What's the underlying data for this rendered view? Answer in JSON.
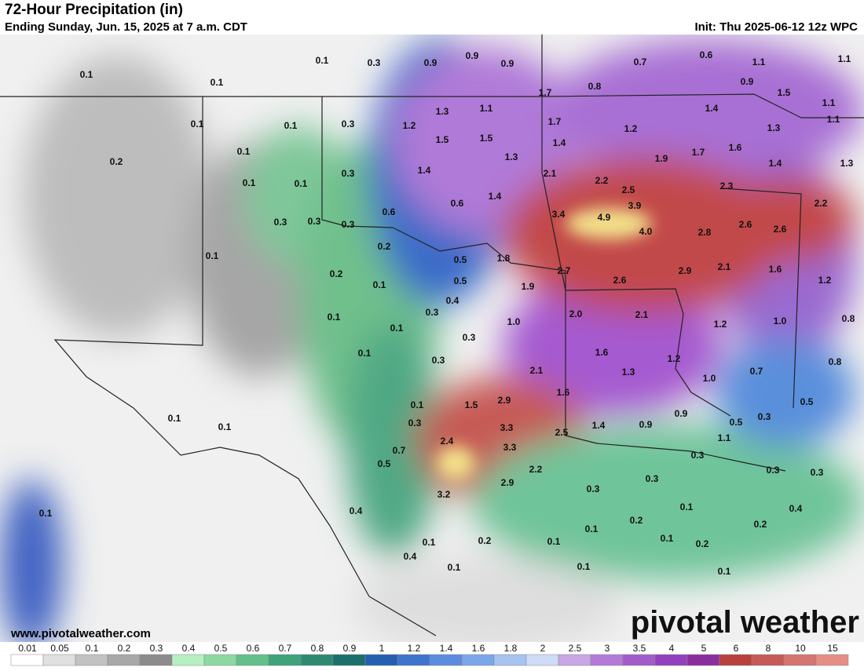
{
  "header": {
    "title": "72-Hour Precipitation (in)",
    "subtitle": "Ending Sunday, Jun. 15, 2025 at 7 a.m. CDT",
    "init": "Init: Thu 2025-06-12 12z WPC"
  },
  "map": {
    "labels": [
      "0.1",
      "0.3",
      "0.9",
      "0.9",
      "0.9",
      "0.7",
      "0.6",
      "1.1",
      "1.1",
      "0.1",
      "0.1",
      "0.9",
      "0.8",
      "1.7",
      "1.5",
      "1.1",
      "1.3",
      "1.1",
      "1.4",
      "1.1",
      "0.1",
      "0.1",
      "0.3",
      "1.2",
      "1.7",
      "1.2",
      "1.3",
      "1.5",
      "1.5",
      "1.4",
      "1.6",
      "0.1",
      "1.3",
      "1.9",
      "1.7",
      "1.4",
      "1.3",
      "0.2",
      "0.3",
      "1.4",
      "2.1",
      "0.1",
      "0.1",
      "2.2",
      "2.5",
      "2.3",
      "1.4",
      "0.6",
      "0.6",
      "3.9",
      "2.2",
      "0.3",
      "0.3",
      "0.3",
      "3.4",
      "4.9",
      "2.6",
      "2.6",
      "4.0",
      "2.8",
      "0.2",
      "0.1",
      "0.5",
      "1.8",
      "2.7",
      "2.9",
      "2.1",
      "1.6",
      "0.2",
      "0.1",
      "0.5",
      "1.9",
      "2.6",
      "1.2",
      "0.4",
      "0.3",
      "2.0",
      "2.1",
      "0.1",
      "1.0",
      "1.2",
      "1.0",
      "0.8",
      "0.1",
      "0.3",
      "0.1",
      "1.6",
      "1.2",
      "0.8",
      "0.3",
      "2.1",
      "1.3",
      "0.7",
      "1.0",
      "1.6",
      "0.1",
      "1.5",
      "2.9",
      "0.9",
      "0.5",
      "0.3",
      "0.1",
      "0.1",
      "0.3",
      "3.3",
      "1.4",
      "0.9",
      "0.5",
      "2.5",
      "1.1",
      "2.4",
      "0.7",
      "3.3",
      "0.5",
      "2.2",
      "0.3",
      "0.3",
      "0.3",
      "2.9",
      "0.3",
      "3.2",
      "0.3",
      "0.4",
      "0.1",
      "0.4",
      "0.1",
      "0.2",
      "0.2",
      "0.1",
      "0.1",
      "0.1",
      "0.2",
      "0.1",
      "0.2",
      "0.4",
      "0.1",
      "0.1",
      "0.1"
    ]
  },
  "footer": {
    "url": "www.pivotalweather.com",
    "brand": "pivotal weather"
  },
  "legend": {
    "ticks": [
      0.01,
      0.05,
      0.1,
      0.2,
      0.3,
      0.4,
      0.5,
      0.6,
      0.7,
      0.8,
      0.9,
      1,
      1.2,
      1.4,
      1.6,
      1.8,
      2,
      2.5,
      3,
      3.5,
      4,
      5,
      6,
      8,
      10,
      15
    ],
    "colors": [
      "#ffffff",
      "#e0e0e0",
      "#c2c2c2",
      "#a8a8a8",
      "#8c8c8c",
      "#b6efc2",
      "#8cd8a0",
      "#64c08a",
      "#3fa27a",
      "#2d8a70",
      "#1c6f6a",
      "#245fb0",
      "#3e74cc",
      "#5b8ce0",
      "#7ca6ea",
      "#a7c3f0",
      "#cfdcf6",
      "#c9a6e6",
      "#b47ad8",
      "#a35acb",
      "#9340bf",
      "#8a2e9e",
      "#b8403e",
      "#c65a58",
      "#d57470",
      "#e58d86"
    ]
  }
}
